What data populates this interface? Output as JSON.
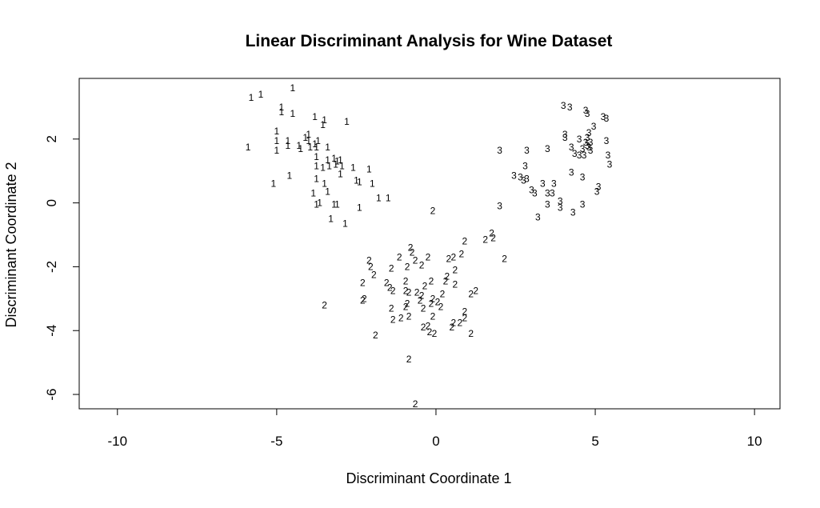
{
  "chart_data": {
    "type": "scatter",
    "title": "Linear Discriminant Analysis for Wine Dataset",
    "xlabel": "Discriminant Coordinate 1",
    "ylabel": "Discriminant Coordinate 2",
    "xlim": [
      -11.2,
      10.8
    ],
    "ylim": [
      -6.45,
      3.9
    ],
    "xticks": [
      "-10",
      "-5",
      "0",
      "5",
      "10"
    ],
    "yticks": [
      "-6",
      "-4",
      "-2",
      "0",
      "2"
    ],
    "grid": false,
    "legend": "none",
    "series": [
      {
        "marker": "1",
        "points": [
          [
            -4.5,
            3.6
          ],
          [
            -5.8,
            3.3
          ],
          [
            -5.5,
            3.4
          ],
          [
            -4.85,
            3.0
          ],
          [
            -4.85,
            2.85
          ],
          [
            -4.5,
            2.8
          ],
          [
            -3.8,
            2.7
          ],
          [
            -3.5,
            2.6
          ],
          [
            -3.55,
            2.45
          ],
          [
            -2.8,
            2.55
          ],
          [
            -5.0,
            2.25
          ],
          [
            -5.0,
            1.95
          ],
          [
            -4.0,
            2.15
          ],
          [
            -4.1,
            2.05
          ],
          [
            -4.0,
            1.95
          ],
          [
            -3.7,
            1.95
          ],
          [
            -3.8,
            1.85
          ],
          [
            -4.65,
            1.95
          ],
          [
            -4.65,
            1.8
          ],
          [
            -4.3,
            1.8
          ],
          [
            -4.25,
            1.7
          ],
          [
            -3.95,
            1.75
          ],
          [
            -3.75,
            1.75
          ],
          [
            -3.4,
            1.75
          ],
          [
            -5.0,
            1.65
          ],
          [
            -5.9,
            1.75
          ],
          [
            -3.75,
            1.45
          ],
          [
            -3.4,
            1.35
          ],
          [
            -3.2,
            1.4
          ],
          [
            -3.1,
            1.3
          ],
          [
            -3.0,
            1.35
          ],
          [
            -3.75,
            1.15
          ],
          [
            -3.55,
            1.1
          ],
          [
            -3.35,
            1.15
          ],
          [
            -3.15,
            1.2
          ],
          [
            -2.95,
            1.15
          ],
          [
            -2.6,
            1.1
          ],
          [
            -2.1,
            1.05
          ],
          [
            -3.0,
            0.9
          ],
          [
            -4.6,
            0.85
          ],
          [
            -3.75,
            0.75
          ],
          [
            -3.5,
            0.6
          ],
          [
            -2.5,
            0.7
          ],
          [
            -2.4,
            0.65
          ],
          [
            -2.0,
            0.6
          ],
          [
            -5.1,
            0.6
          ],
          [
            -3.85,
            0.3
          ],
          [
            -3.4,
            0.35
          ],
          [
            -1.8,
            0.15
          ],
          [
            -1.5,
            0.15
          ],
          [
            -3.65,
            0.0
          ],
          [
            -3.75,
            -0.05
          ],
          [
            -3.2,
            -0.05
          ],
          [
            -3.1,
            -0.05
          ],
          [
            -2.4,
            -0.15
          ],
          [
            -3.3,
            -0.5
          ],
          [
            -2.85,
            -0.65
          ]
        ]
      },
      {
        "marker": "2",
        "points": [
          [
            -0.1,
            -0.25
          ],
          [
            1.75,
            -0.95
          ],
          [
            1.8,
            -1.1
          ],
          [
            1.55,
            -1.15
          ],
          [
            0.9,
            -1.2
          ],
          [
            -0.8,
            -1.4
          ],
          [
            -0.75,
            -1.55
          ],
          [
            0.8,
            -1.6
          ],
          [
            0.55,
            -1.7
          ],
          [
            0.4,
            -1.75
          ],
          [
            -1.15,
            -1.7
          ],
          [
            -0.25,
            -1.7
          ],
          [
            -0.65,
            -1.8
          ],
          [
            2.15,
            -1.75
          ],
          [
            -2.1,
            -1.8
          ],
          [
            -0.45,
            -1.95
          ],
          [
            -0.9,
            -2.0
          ],
          [
            -2.05,
            -2.0
          ],
          [
            0.6,
            -2.1
          ],
          [
            -1.4,
            -2.05
          ],
          [
            -1.95,
            -2.25
          ],
          [
            0.35,
            -2.3
          ],
          [
            0.3,
            -2.45
          ],
          [
            -2.3,
            -2.5
          ],
          [
            -1.55,
            -2.5
          ],
          [
            -0.95,
            -2.45
          ],
          [
            -0.15,
            -2.45
          ],
          [
            0.6,
            -2.55
          ],
          [
            -1.45,
            -2.65
          ],
          [
            -0.35,
            -2.6
          ],
          [
            -1.35,
            -2.75
          ],
          [
            -0.95,
            -2.75
          ],
          [
            -0.85,
            -2.8
          ],
          [
            -0.6,
            -2.8
          ],
          [
            -0.45,
            -2.9
          ],
          [
            0.2,
            -2.85
          ],
          [
            1.25,
            -2.75
          ],
          [
            1.1,
            -2.85
          ],
          [
            -0.5,
            -3.05
          ],
          [
            -0.1,
            -3.0
          ],
          [
            -2.3,
            -3.05
          ],
          [
            -2.25,
            -3.0
          ],
          [
            -0.9,
            -3.15
          ],
          [
            -0.15,
            -3.15
          ],
          [
            0.05,
            -3.1
          ],
          [
            -0.4,
            -3.3
          ],
          [
            0.15,
            -3.25
          ],
          [
            -1.4,
            -3.3
          ],
          [
            -0.95,
            -3.25
          ],
          [
            -3.5,
            -3.2
          ],
          [
            0.9,
            -3.4
          ],
          [
            -0.85,
            -3.55
          ],
          [
            -1.1,
            -3.6
          ],
          [
            -1.35,
            -3.65
          ],
          [
            -0.1,
            -3.55
          ],
          [
            0.9,
            -3.6
          ],
          [
            0.75,
            -3.75
          ],
          [
            0.55,
            -3.75
          ],
          [
            -0.25,
            -3.85
          ],
          [
            -0.4,
            -3.9
          ],
          [
            0.5,
            -3.9
          ],
          [
            -0.2,
            -4.05
          ],
          [
            -0.05,
            -4.1
          ],
          [
            1.1,
            -4.1
          ],
          [
            -1.9,
            -4.15
          ],
          [
            -0.85,
            -4.9
          ],
          [
            -0.65,
            -6.3
          ]
        ]
      },
      {
        "marker": "3",
        "points": [
          [
            4.0,
            3.05
          ],
          [
            4.2,
            3.0
          ],
          [
            4.7,
            2.9
          ],
          [
            4.75,
            2.8
          ],
          [
            5.25,
            2.7
          ],
          [
            5.35,
            2.65
          ],
          [
            4.95,
            2.4
          ],
          [
            4.8,
            2.2
          ],
          [
            4.05,
            2.15
          ],
          [
            4.05,
            2.05
          ],
          [
            4.75,
            2.05
          ],
          [
            4.5,
            2.0
          ],
          [
            4.7,
            1.9
          ],
          [
            4.85,
            1.9
          ],
          [
            5.35,
            1.95
          ],
          [
            4.75,
            1.8
          ],
          [
            4.8,
            1.75
          ],
          [
            4.25,
            1.75
          ],
          [
            4.6,
            1.7
          ],
          [
            4.85,
            1.65
          ],
          [
            3.5,
            1.7
          ],
          [
            2.85,
            1.65
          ],
          [
            2.0,
            1.65
          ],
          [
            4.35,
            1.55
          ],
          [
            4.5,
            1.5
          ],
          [
            4.65,
            1.5
          ],
          [
            5.4,
            1.5
          ],
          [
            5.45,
            1.2
          ],
          [
            2.8,
            1.15
          ],
          [
            2.45,
            0.85
          ],
          [
            2.65,
            0.8
          ],
          [
            2.85,
            0.75
          ],
          [
            2.75,
            0.7
          ],
          [
            3.35,
            0.6
          ],
          [
            3.7,
            0.6
          ],
          [
            4.25,
            0.95
          ],
          [
            4.6,
            0.8
          ],
          [
            3.0,
            0.4
          ],
          [
            3.1,
            0.3
          ],
          [
            3.5,
            0.3
          ],
          [
            3.65,
            0.3
          ],
          [
            5.1,
            0.5
          ],
          [
            5.05,
            0.35
          ],
          [
            3.9,
            0.05
          ],
          [
            3.5,
            -0.05
          ],
          [
            3.9,
            -0.15
          ],
          [
            4.6,
            -0.05
          ],
          [
            2.0,
            -0.1
          ],
          [
            4.3,
            -0.3
          ],
          [
            3.2,
            -0.45
          ]
        ]
      }
    ]
  }
}
